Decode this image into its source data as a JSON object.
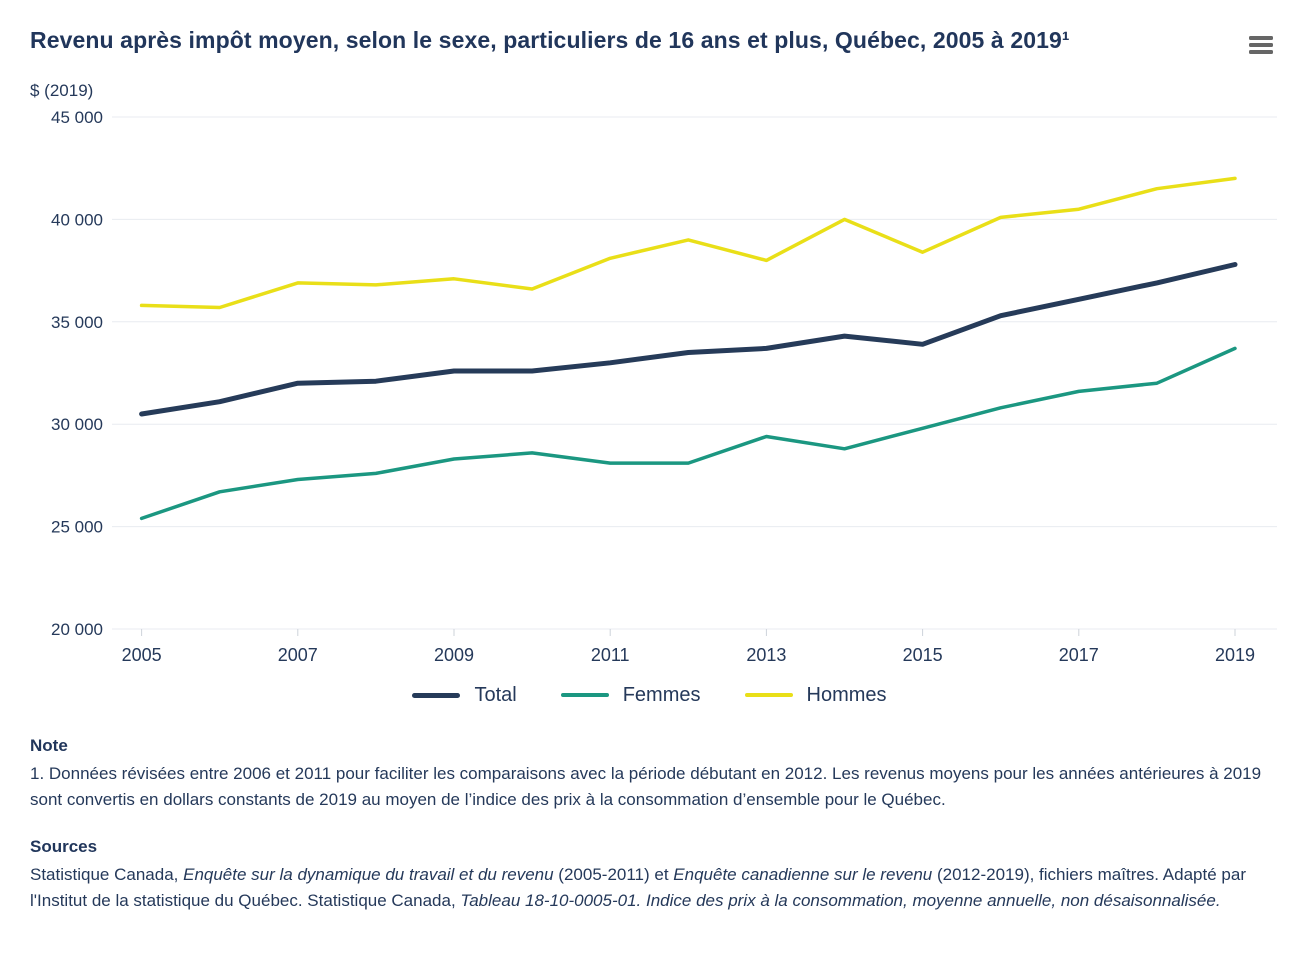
{
  "header": {
    "title": "Revenu après impôt moyen, selon le sexe, particuliers de 16 ans et plus, Québec, 2005 à 2019¹"
  },
  "chart_data": {
    "type": "line",
    "title": "Revenu après impôt moyen, selon le sexe, particuliers de 16 ans et plus, Québec, 2005 à 2019¹",
    "unit_label": "$ (2019)",
    "categories": [
      2005,
      2006,
      2007,
      2008,
      2009,
      2010,
      2011,
      2012,
      2013,
      2014,
      2015,
      2016,
      2017,
      2018,
      2019
    ],
    "series": [
      {
        "name": "Total",
        "color": "#263b59",
        "stroke_width": 5,
        "values": [
          30500,
          31100,
          32000,
          32100,
          32600,
          32600,
          33000,
          33500,
          33700,
          34300,
          33900,
          35300,
          36100,
          36900,
          37800
        ]
      },
      {
        "name": "Femmes",
        "color": "#1b9781",
        "stroke_width": 3.5,
        "values": [
          25400,
          26700,
          27300,
          27600,
          28300,
          28600,
          28100,
          28100,
          29400,
          28800,
          29800,
          30800,
          31600,
          32000,
          33700
        ]
      },
      {
        "name": "Hommes",
        "color": "#e9df18",
        "stroke_width": 3.5,
        "values": [
          35800,
          35700,
          36900,
          36800,
          37100,
          36600,
          38100,
          39000,
          38000,
          40000,
          38400,
          40100,
          40500,
          41500,
          42000
        ]
      }
    ],
    "ylim": [
      20000,
      45000
    ],
    "y_ticks": [
      45000,
      40000,
      35000,
      30000,
      25000,
      20000
    ],
    "y_tick_labels": [
      "45 000",
      "40 000",
      "35 000",
      "30 000",
      "25 000",
      "20 000"
    ],
    "x_tick_years": [
      2005,
      2007,
      2009,
      2011,
      2013,
      2015,
      2017,
      2019
    ],
    "x_tick_labels": [
      "2005",
      "2007",
      "2009",
      "2011",
      "2013",
      "2015",
      "2017",
      "2019"
    ],
    "grid": true,
    "legend_position": "bottom",
    "grid_color": "#e8ebf0",
    "tick_color": "#ced3da",
    "label_color": "#25395a"
  },
  "notes": {
    "note_heading": "Note",
    "note_text": "1. Données révisées entre 2006 et 2011 pour faciliter les comparaisons avec la période débutant en 2012. Les revenus moyens pour les années antérieures à 2019 sont convertis en dollars constants de 2019 au moyen de l’indice des prix à la consommation d’ensemble pour le Québec.",
    "sources_heading": "Sources",
    "sources_segments": [
      {
        "text": "Statistique Canada, ",
        "italic": false
      },
      {
        "text": "Enquête sur la dynamique du travail et du revenu",
        "italic": true
      },
      {
        "text": " (2005-2011) et ",
        "italic": false
      },
      {
        "text": "Enquête canadienne sur le revenu",
        "italic": true
      },
      {
        "text": " (2012-2019), fichiers maîtres. Adapté par l'Institut de la statistique du Québec. Statistique Canada, ",
        "italic": false
      },
      {
        "text": "Tableau 18-10-0005-01. Indice des prix à la consommation, moyenne annuelle, non désaisonnalisée.",
        "italic": true
      }
    ]
  }
}
